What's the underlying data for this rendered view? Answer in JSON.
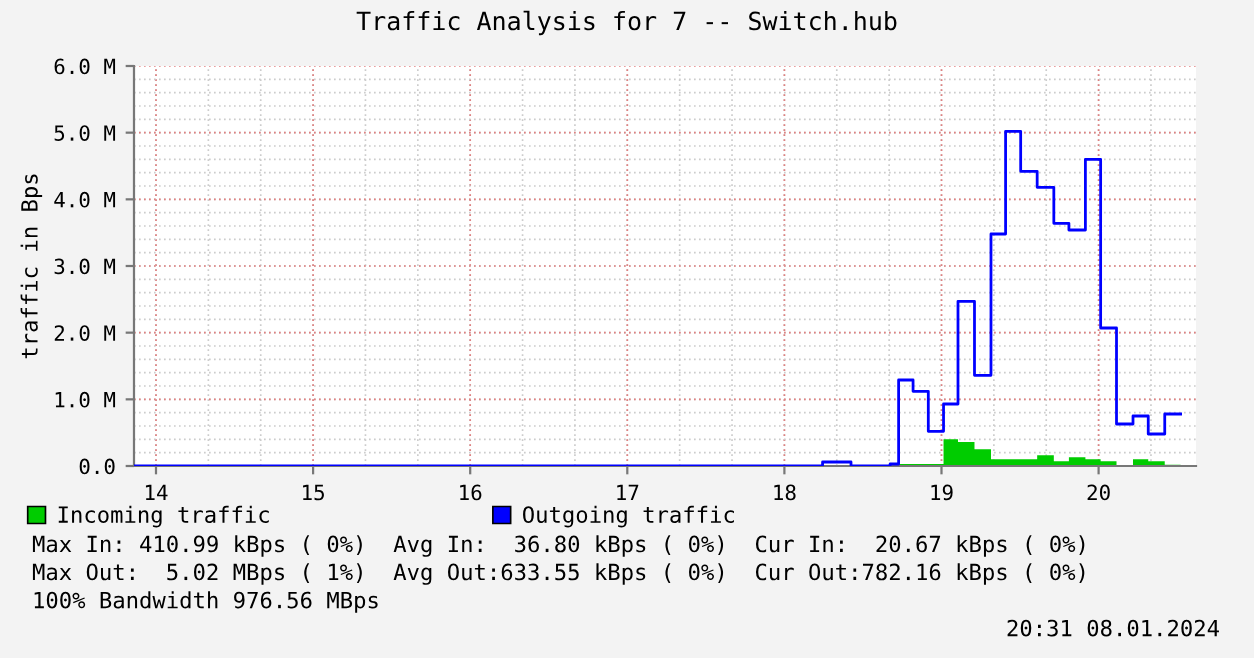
{
  "chart_data": {
    "type": "step",
    "title": "Traffic Analysis for 7 -- Switch.hub",
    "ylabel": "traffic in Bps",
    "xlim": [
      13.86,
      20.62
    ],
    "xticks": [
      14,
      15,
      16,
      17,
      18,
      19,
      20
    ],
    "ylim": [
      0,
      6
    ],
    "yticks": [
      {
        "value": 0,
        "label": "0.0"
      },
      {
        "value": 1,
        "label": "1.0 M"
      },
      {
        "value": 2,
        "label": "2.0 M"
      },
      {
        "value": 3,
        "label": "3.0 M"
      },
      {
        "value": 4,
        "label": "4.0 M"
      },
      {
        "value": 5,
        "label": "5.0 M"
      },
      {
        "value": 6,
        "label": "6.0 M"
      }
    ],
    "grid": true,
    "legend": "bottom",
    "series": [
      {
        "name": "Incoming traffic",
        "type": "area",
        "color": "#00cc00",
        "x": [
          13.86,
          18.727,
          19.013,
          19.105,
          19.21,
          19.315,
          19.504,
          19.609,
          19.715,
          19.811,
          19.916,
          20.013,
          20.114,
          20.219,
          20.316,
          20.421,
          20.522
        ],
        "values": [
          0,
          0.03,
          0.4,
          0.36,
          0.25,
          0.1,
          0.1,
          0.16,
          0.07,
          0.13,
          0.1,
          0.07,
          0,
          0.1,
          0.07,
          0.02,
          0.02
        ]
      },
      {
        "name": "Outgoing traffic",
        "color": "#0000ff",
        "x": [
          13.86,
          18.243,
          18.424,
          18.673,
          18.727,
          18.819,
          18.916,
          19.013,
          19.105,
          19.21,
          19.315,
          19.408,
          19.504,
          19.609,
          19.715,
          19.811,
          19.916,
          20.013,
          20.114,
          20.219,
          20.316,
          20.421,
          20.522
        ],
        "values": [
          0,
          0.06,
          0,
          0.03,
          1.29,
          1.12,
          0.52,
          0.93,
          2.47,
          1.36,
          3.48,
          5.02,
          4.42,
          4.18,
          3.64,
          3.54,
          4.6,
          2.07,
          0.63,
          0.75,
          0.48,
          0.78,
          0.78
        ]
      }
    ],
    "annotations": [
      "Max In: 410.99 kBps ( 0%)  Avg In:  36.80 kBps ( 0%)  Cur In:  20.67 kBps ( 0%)",
      "Max Out:  5.02 MBps ( 1%)  Avg Out:633.55 kBps ( 0%)  Cur Out:782.16 kBps ( 0%)",
      "100% Bandwidth 976.56 MBps",
      "20:31 08.01.2024"
    ]
  }
}
